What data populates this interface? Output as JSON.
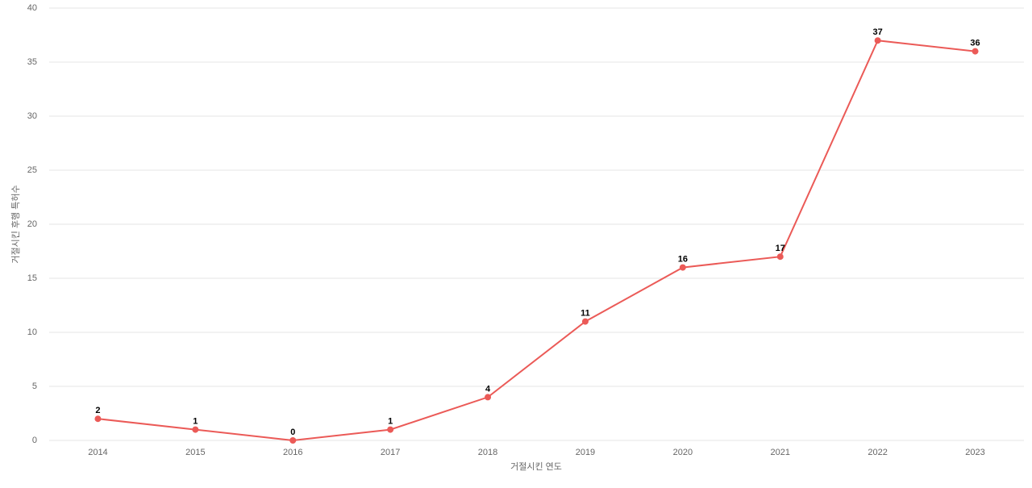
{
  "chart_data": {
    "type": "line",
    "x_label": "거절시킨 연도",
    "y_label": "거절시킨 후행 특허수",
    "categories": [
      "2014",
      "2015",
      "2016",
      "2017",
      "2018",
      "2019",
      "2020",
      "2021",
      "2022",
      "2023"
    ],
    "series": [
      {
        "name": "거절시킨 후행 특허수",
        "color": "#eb5a57",
        "values": [
          2,
          1,
          0,
          1,
          4,
          11,
          16,
          17,
          37,
          36
        ]
      }
    ],
    "ylim": [
      0,
      40
    ],
    "yticks": [
      0,
      5,
      10,
      15,
      20,
      25,
      30,
      35,
      40
    ],
    "grid": true
  }
}
